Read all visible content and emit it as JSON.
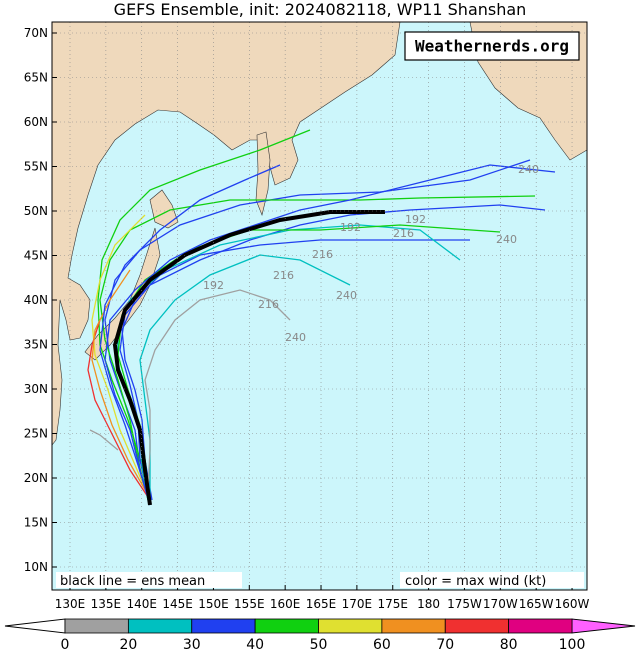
{
  "title": "GEFS Ensemble, init: 2024082118, WP11 Shanshan",
  "watermark": "Weathernerds.org",
  "legend_left": "black line = ens mean",
  "legend_right": "color = max wind (kt)",
  "lon_labels": [
    "130E",
    "135E",
    "140E",
    "145E",
    "150E",
    "155E",
    "160E",
    "165E",
    "170E",
    "175E",
    "180",
    "175W",
    "170W",
    "165W",
    "160W"
  ],
  "lat_labels": [
    "10N",
    "15N",
    "20N",
    "25N",
    "30N",
    "35N",
    "40N",
    "45N",
    "50N",
    "55N",
    "60N",
    "65N",
    "70N"
  ],
  "annotations": [
    "240",
    "240",
    "240",
    "240",
    "216",
    "216",
    "216",
    "216",
    "192",
    "192",
    "192"
  ],
  "colorbar": {
    "labels": [
      0,
      20,
      30,
      40,
      50,
      60,
      70,
      80,
      100
    ],
    "colors": [
      "#a0a0a0",
      "#00c0c0",
      "#2040f0",
      "#10d010",
      "#e0e030",
      "#f09020",
      "#f03030",
      "#e00080"
    ],
    "under_color": "#ffffff",
    "over_color": "#ff60ff"
  }
}
